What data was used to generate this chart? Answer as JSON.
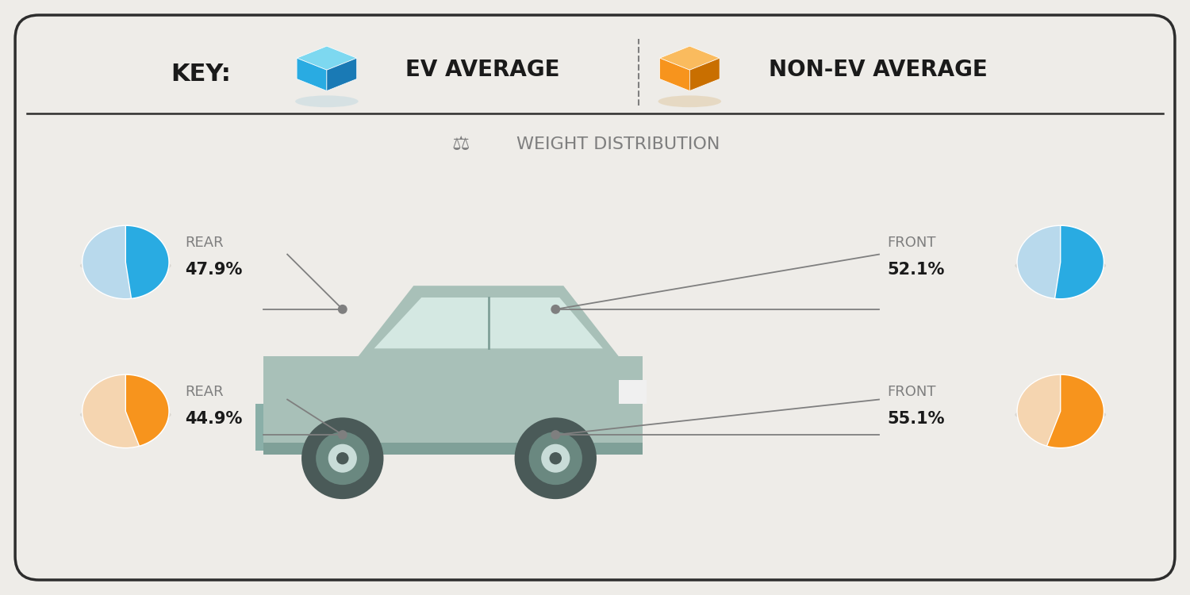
{
  "bg_color": "#eeece8",
  "border_color": "#2d2d2d",
  "title": "WEIGHT DISTRIBUTION",
  "key_label_ev": "EV AVERAGE",
  "key_label_nonev": "NON-EV AVERAGE",
  "ev_color_main": "#29abe2",
  "ev_color_light": "#b8d9ec",
  "nonev_color_main": "#f7941d",
  "nonev_color_light": "#f5d5b0",
  "ev_rear_pct": 47.9,
  "ev_front_pct": 52.1,
  "nonev_rear_pct": 44.9,
  "nonev_front_pct": 55.1,
  "label_color": "#7f7f7f",
  "text_color": "#1a1a1a",
  "separator_color": "#7f7f7f",
  "line_color": "#7f7f7f"
}
